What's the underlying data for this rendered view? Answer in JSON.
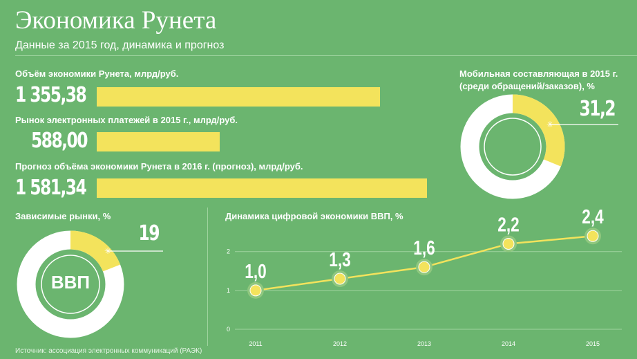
{
  "header": {
    "title": "Экономика Рунета",
    "subtitle": "Данные за 2015 год, динамика и прогноз"
  },
  "bars": [
    {
      "label": "Объём экономики Рунета, млрд/руб.",
      "value_text": "1 355,38",
      "value": 1355.38
    },
    {
      "label": "Рынок электронных платежей в 2015 г., млрд/руб.",
      "value_text": "588,00",
      "value": 588.0
    },
    {
      "label": "Прогноз объёма экономики Рунета в 2016 г. (прогноз), млрд/руб.",
      "value_text": "1 581,34",
      "value": 1581.34
    }
  ],
  "mobile": {
    "label_line1": "Мобильная составляющая в 2015 г.",
    "label_line2": "(среди обращений/заказов), %",
    "value_text": "31,2",
    "percent": 31.2
  },
  "dependent": {
    "label": "Зависимые рынки, %",
    "value_text": "19",
    "percent": 19,
    "center_text": "ВВП"
  },
  "colors": {
    "background": "#6bb56f",
    "accent": "#f3e35c",
    "ring": "#ffffff"
  },
  "chart_data": {
    "type": "line",
    "title": "Динамика цифровой экономики ВВП, %",
    "x": [
      "2011",
      "2012",
      "2013",
      "2014",
      "2015"
    ],
    "y": [
      1.0,
      1.3,
      1.6,
      2.2,
      2.4
    ],
    "point_labels": [
      "1,0",
      "1,3",
      "1,6",
      "2,2",
      "2,4"
    ],
    "yticks": [
      "0",
      "1",
      "2"
    ],
    "ylim": [
      0,
      2.6
    ],
    "grid": true
  },
  "source": "Источник: ассоциация электронных коммуникаций (РАЭК)"
}
